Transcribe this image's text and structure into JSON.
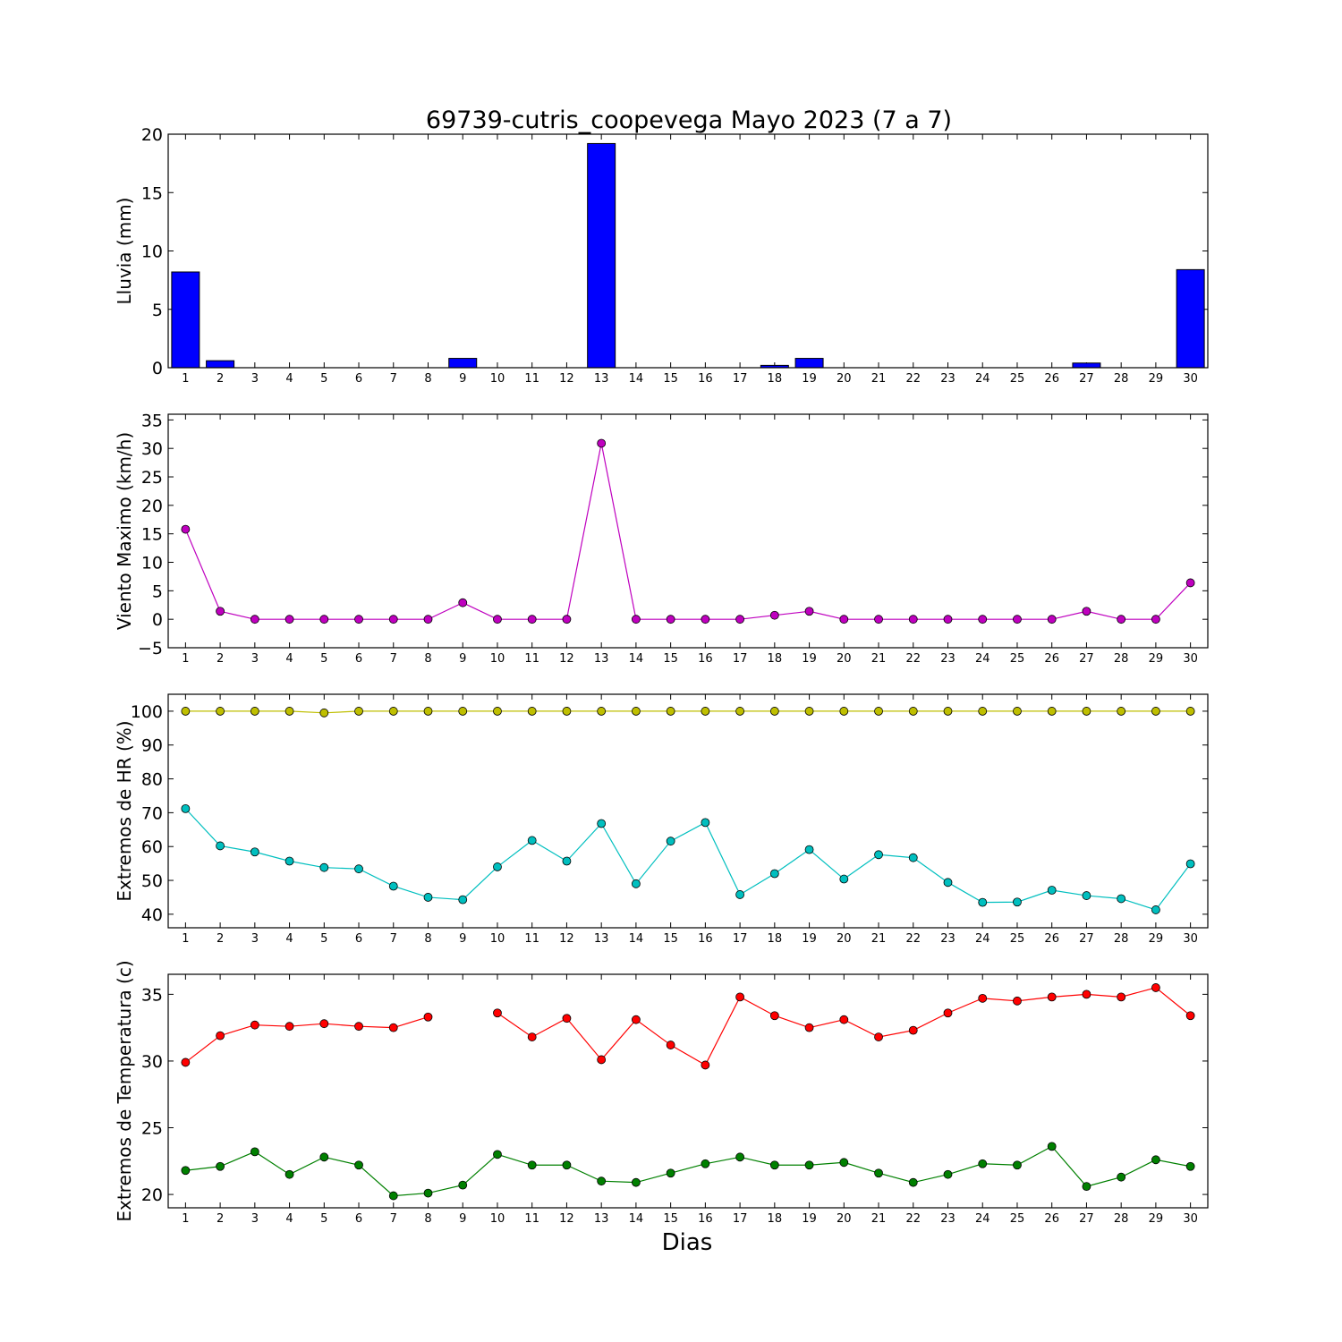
{
  "figure": {
    "title": "69739-cutris_coopevega Mayo 2023  (7 a 7)",
    "xlabel": "Dias"
  },
  "chart_data": [
    {
      "type": "bar",
      "ylabel": "Lluvia (mm)",
      "ylim": [
        0,
        20
      ],
      "yticks": [
        0,
        5,
        10,
        15,
        20
      ],
      "categories": [
        1,
        2,
        3,
        4,
        5,
        6,
        7,
        8,
        9,
        10,
        11,
        12,
        13,
        14,
        15,
        16,
        17,
        18,
        19,
        20,
        21,
        22,
        23,
        24,
        25,
        26,
        27,
        28,
        29,
        30
      ],
      "series": [
        {
          "color": "#0000ff",
          "values": [
            8.2,
            0.6,
            0,
            0,
            0,
            0,
            0,
            0,
            0.8,
            0,
            0,
            0,
            19.2,
            0,
            0,
            0,
            0,
            0.2,
            0.8,
            0,
            0,
            0,
            0,
            0,
            0,
            0,
            0.4,
            0,
            0,
            8.4
          ]
        }
      ]
    },
    {
      "type": "line",
      "ylabel": "Viento Maximo (km/h)",
      "ylim": [
        -5,
        36
      ],
      "yticks": [
        -5,
        0,
        5,
        10,
        15,
        20,
        25,
        30,
        35
      ],
      "categories": [
        1,
        2,
        3,
        4,
        5,
        6,
        7,
        8,
        9,
        10,
        11,
        12,
        13,
        14,
        15,
        16,
        17,
        18,
        19,
        20,
        21,
        22,
        23,
        24,
        25,
        26,
        27,
        28,
        29,
        30
      ],
      "series": [
        {
          "color": "#bf00bf",
          "values": [
            15.8,
            1.4,
            0,
            0,
            0,
            0,
            0,
            0,
            2.9,
            0,
            0,
            0,
            30.9,
            0,
            0,
            0,
            0,
            0.7,
            1.4,
            0,
            0,
            0,
            0,
            0,
            0,
            0,
            1.4,
            0,
            0,
            6.4
          ]
        }
      ]
    },
    {
      "type": "line",
      "ylabel": "Extremos de HR (%)",
      "ylim": [
        36,
        105
      ],
      "yticks": [
        40,
        50,
        60,
        70,
        80,
        90,
        100
      ],
      "categories": [
        1,
        2,
        3,
        4,
        5,
        6,
        7,
        8,
        9,
        10,
        11,
        12,
        13,
        14,
        15,
        16,
        17,
        18,
        19,
        20,
        21,
        22,
        23,
        24,
        25,
        26,
        27,
        28,
        29,
        30
      ],
      "series": [
        {
          "color": "#bfbf00",
          "values": [
            100,
            100,
            100,
            100,
            99.5,
            100,
            100,
            100,
            100,
            100,
            100,
            100,
            100,
            100,
            100,
            100,
            100,
            100,
            100,
            100,
            100,
            100,
            100,
            100,
            100,
            100,
            100,
            100,
            100,
            100
          ]
        },
        {
          "color": "#00bfbf",
          "values": [
            71.2,
            60.2,
            58.4,
            55.7,
            53.8,
            53.4,
            48.3,
            45,
            44.3,
            54,
            61.8,
            55.7,
            66.8,
            49,
            61.6,
            67.1,
            45.8,
            52,
            59.1,
            50.4,
            57.6,
            56.7,
            49.4,
            43.5,
            43.6,
            47.1,
            45.5,
            44.6,
            41.3,
            54.9
          ]
        }
      ]
    },
    {
      "type": "line",
      "ylabel": "Extremos de Temperatura (c)",
      "ylim": [
        19,
        36.5
      ],
      "yticks": [
        20,
        25,
        30,
        35
      ],
      "categories": [
        1,
        2,
        3,
        4,
        5,
        6,
        7,
        8,
        9,
        10,
        11,
        12,
        13,
        14,
        15,
        16,
        17,
        18,
        19,
        20,
        21,
        22,
        23,
        24,
        25,
        26,
        27,
        28,
        29,
        30
      ],
      "series": [
        {
          "color": "#ff0000",
          "values": [
            29.9,
            31.9,
            32.7,
            32.6,
            32.8,
            32.6,
            32.5,
            33.3,
            null,
            33.6,
            31.8,
            33.2,
            30.1,
            33.1,
            31.2,
            29.7,
            34.8,
            33.4,
            32.5,
            33.1,
            31.8,
            32.3,
            33.6,
            34.7,
            34.5,
            34.8,
            35,
            34.8,
            35.5,
            33.4
          ]
        },
        {
          "color": "#008000",
          "values": [
            21.8,
            22.1,
            23.2,
            21.5,
            22.8,
            22.2,
            19.9,
            20.1,
            20.7,
            23,
            22.2,
            22.2,
            21,
            20.9,
            21.6,
            22.3,
            22.8,
            22.2,
            22.2,
            22.4,
            21.6,
            20.9,
            21.5,
            22.3,
            22.2,
            23.6,
            20.6,
            21.3,
            22.6,
            22.1
          ]
        }
      ]
    }
  ]
}
